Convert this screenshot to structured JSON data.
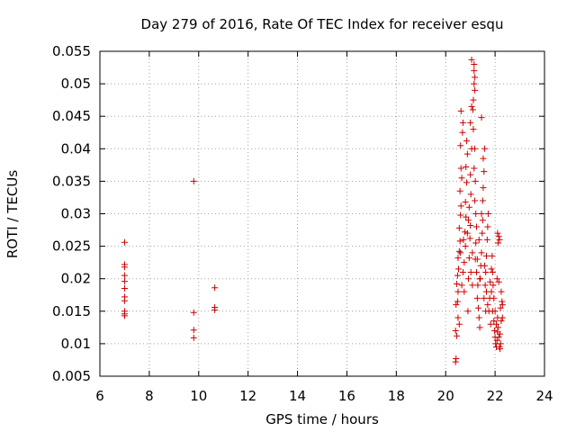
{
  "chart_data": {
    "type": "scatter",
    "title": "Day 279 of 2016, Rate Of TEC Index for receiver esqu",
    "xlabel": "GPS time / hours",
    "ylabel": "ROTI / TECUs",
    "xlim": [
      6,
      24
    ],
    "ylim": [
      0.005,
      0.055
    ],
    "xticks": [
      6,
      8,
      10,
      12,
      14,
      16,
      18,
      20,
      22,
      24
    ],
    "xtick_labels": [
      "6",
      "8",
      "10",
      "12",
      "14",
      "16",
      "18",
      "20",
      "22",
      "24"
    ],
    "yticks": [
      0.005,
      0.01,
      0.015,
      0.02,
      0.025,
      0.03,
      0.035,
      0.04,
      0.045,
      0.05,
      0.055
    ],
    "ytick_labels": [
      "0.005",
      "0.01",
      "0.015",
      "0.02",
      "0.025",
      "0.03",
      "0.035",
      "0.04",
      "0.045",
      "0.05",
      "0.055"
    ],
    "grid": true,
    "marker": "+",
    "color": "#cc0000",
    "series": [
      {
        "name": "ROTI",
        "points": [
          [
            7.0,
            0.0256
          ],
          [
            7.0,
            0.0222
          ],
          [
            7.0,
            0.0218
          ],
          [
            7.0,
            0.0205
          ],
          [
            7.0,
            0.0196
          ],
          [
            7.0,
            0.0185
          ],
          [
            7.0,
            0.0172
          ],
          [
            7.0,
            0.0166
          ],
          [
            7.0,
            0.015
          ],
          [
            7.0,
            0.0146
          ],
          [
            7.0,
            0.0143
          ],
          [
            9.8,
            0.035
          ],
          [
            9.8,
            0.0148
          ],
          [
            9.8,
            0.0121
          ],
          [
            9.8,
            0.0109
          ],
          [
            10.65,
            0.0186
          ],
          [
            10.65,
            0.0156
          ],
          [
            10.65,
            0.0152
          ],
          [
            20.4,
            0.0072
          ],
          [
            20.42,
            0.0077
          ],
          [
            20.4,
            0.012
          ],
          [
            20.45,
            0.0112
          ],
          [
            20.42,
            0.016
          ],
          [
            20.48,
            0.0165
          ],
          [
            20.5,
            0.018
          ],
          [
            20.45,
            0.0192
          ],
          [
            20.48,
            0.0205
          ],
          [
            20.52,
            0.0215
          ],
          [
            20.5,
            0.0232
          ],
          [
            20.55,
            0.0242
          ],
          [
            20.58,
            0.0258
          ],
          [
            20.55,
            0.0278
          ],
          [
            20.6,
            0.0298
          ],
          [
            20.62,
            0.0312
          ],
          [
            20.58,
            0.0335
          ],
          [
            20.65,
            0.0355
          ],
          [
            20.62,
            0.037
          ],
          [
            20.6,
            0.0405
          ],
          [
            20.68,
            0.0425
          ],
          [
            20.7,
            0.044
          ],
          [
            20.62,
            0.0458
          ],
          [
            20.75,
            0.018
          ],
          [
            20.75,
            0.0225
          ],
          [
            20.8,
            0.025
          ],
          [
            20.78,
            0.0272
          ],
          [
            20.82,
            0.0295
          ],
          [
            20.8,
            0.0318
          ],
          [
            20.85,
            0.0348
          ],
          [
            20.82,
            0.0372
          ],
          [
            20.88,
            0.0392
          ],
          [
            20.85,
            0.0412
          ],
          [
            20.9,
            0.015
          ],
          [
            20.92,
            0.02
          ],
          [
            20.95,
            0.0232
          ],
          [
            20.98,
            0.0262
          ],
          [
            21.0,
            0.0282
          ],
          [
            20.95,
            0.031
          ],
          [
            21.02,
            0.033
          ],
          [
            21.0,
            0.036
          ],
          [
            21.05,
            0.04
          ],
          [
            21.0,
            0.044
          ],
          [
            21.05,
            0.0465
          ],
          [
            21.05,
            0.0537
          ],
          [
            21.15,
            0.053
          ],
          [
            21.15,
            0.052
          ],
          [
            21.18,
            0.051
          ],
          [
            21.15,
            0.05
          ],
          [
            21.18,
            0.049
          ],
          [
            21.12,
            0.0475
          ],
          [
            21.1,
            0.046
          ],
          [
            21.12,
            0.043
          ],
          [
            21.18,
            0.04
          ],
          [
            21.15,
            0.037
          ],
          [
            21.2,
            0.035
          ],
          [
            21.18,
            0.032
          ],
          [
            21.22,
            0.03
          ],
          [
            21.25,
            0.028
          ],
          [
            21.22,
            0.0255
          ],
          [
            21.28,
            0.023
          ],
          [
            21.25,
            0.021
          ],
          [
            21.3,
            0.019
          ],
          [
            21.28,
            0.017
          ],
          [
            21.32,
            0.0155
          ],
          [
            21.35,
            0.014
          ],
          [
            21.38,
            0.0125
          ],
          [
            21.4,
            0.02
          ],
          [
            21.42,
            0.022
          ],
          [
            21.45,
            0.024
          ],
          [
            21.48,
            0.027
          ],
          [
            21.5,
            0.029
          ],
          [
            21.45,
            0.03
          ],
          [
            21.5,
            0.032
          ],
          [
            21.52,
            0.034
          ],
          [
            21.55,
            0.0365
          ],
          [
            21.52,
            0.0385
          ],
          [
            21.58,
            0.04
          ],
          [
            21.45,
            0.0448
          ],
          [
            21.6,
            0.019
          ],
          [
            21.62,
            0.021
          ],
          [
            21.65,
            0.0235
          ],
          [
            21.68,
            0.026
          ],
          [
            21.7,
            0.028
          ],
          [
            21.72,
            0.03
          ],
          [
            21.65,
            0.018
          ],
          [
            21.7,
            0.016
          ],
          [
            21.75,
            0.015
          ],
          [
            21.78,
            0.017
          ],
          [
            21.8,
            0.0195
          ],
          [
            21.85,
            0.0215
          ],
          [
            21.88,
            0.0235
          ],
          [
            21.9,
            0.021
          ],
          [
            21.92,
            0.019
          ],
          [
            21.95,
            0.017
          ],
          [
            21.9,
            0.015
          ],
          [
            21.95,
            0.0135
          ],
          [
            21.98,
            0.012
          ],
          [
            22.0,
            0.011
          ],
          [
            22.02,
            0.01
          ],
          [
            22.05,
            0.0095
          ],
          [
            22.08,
            0.0105
          ],
          [
            22.1,
            0.0118
          ],
          [
            22.05,
            0.013
          ],
          [
            22.1,
            0.014
          ],
          [
            22.12,
            0.0125
          ],
          [
            22.15,
            0.011
          ],
          [
            22.18,
            0.0095
          ],
          [
            22.2,
            0.0092
          ],
          [
            22.22,
            0.01
          ],
          [
            22.2,
            0.0115
          ],
          [
            22.25,
            0.0135
          ],
          [
            22.22,
            0.0155
          ],
          [
            22.28,
            0.0165
          ],
          [
            22.25,
            0.018
          ],
          [
            22.15,
            0.0265
          ],
          [
            22.18,
            0.026
          ],
          [
            22.1,
            0.027
          ],
          [
            22.12,
            0.0255
          ],
          [
            22.08,
            0.02
          ],
          [
            22.15,
            0.0195
          ],
          [
            22.3,
            0.014
          ],
          [
            22.3,
            0.016
          ],
          [
            20.5,
            0.014
          ],
          [
            20.55,
            0.013
          ],
          [
            20.65,
            0.019
          ],
          [
            20.7,
            0.021
          ],
          [
            20.6,
            0.024
          ],
          [
            20.72,
            0.026
          ],
          [
            20.88,
            0.027
          ],
          [
            20.92,
            0.029
          ],
          [
            21.02,
            0.021
          ],
          [
            21.08,
            0.019
          ],
          [
            21.08,
            0.024
          ],
          [
            21.2,
            0.023
          ],
          [
            21.35,
            0.026
          ],
          [
            21.38,
            0.02
          ],
          [
            21.55,
            0.017
          ],
          [
            21.58,
            0.022
          ],
          [
            21.62,
            0.015
          ],
          [
            21.82,
            0.013
          ],
          [
            21.85,
            0.018
          ],
          [
            22.0,
            0.015
          ]
        ]
      }
    ]
  }
}
